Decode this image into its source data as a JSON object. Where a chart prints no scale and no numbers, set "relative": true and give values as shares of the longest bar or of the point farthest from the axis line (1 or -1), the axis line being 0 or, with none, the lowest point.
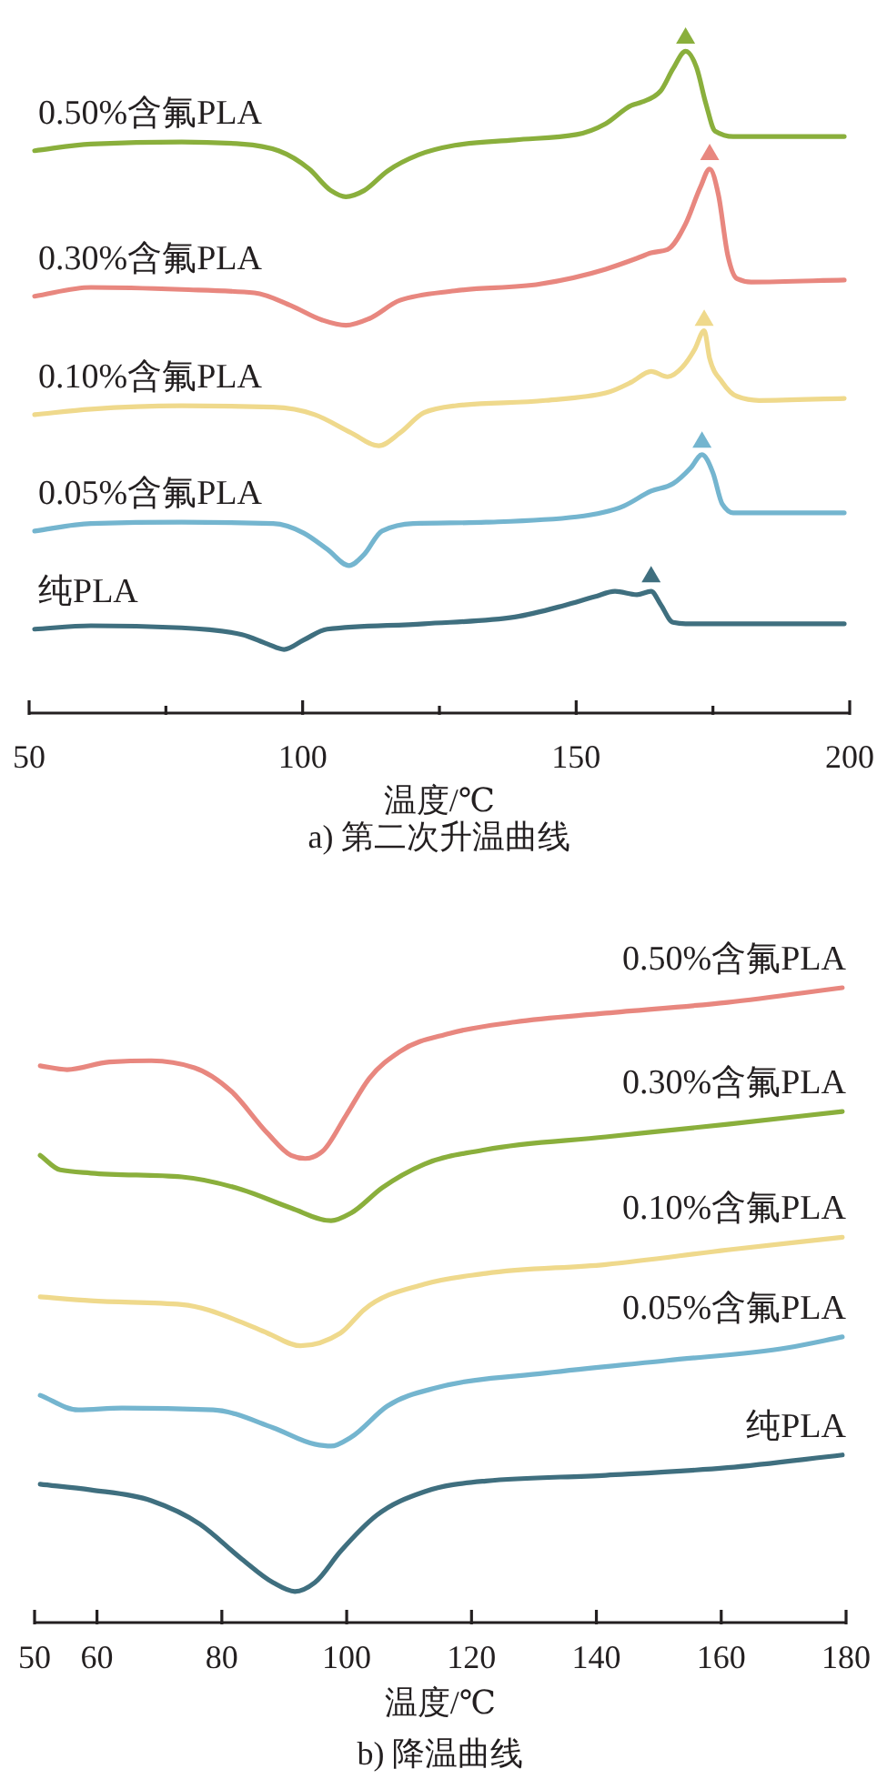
{
  "chart_data": [
    {
      "type": "line",
      "relative": true,
      "title": "a) 第二次升温曲线",
      "xlabel": "温度/℃",
      "xlim": [
        50,
        200
      ],
      "xticks": [
        50,
        {
          "value": 75,
          "label": null
        },
        100,
        {
          "value": 125,
          "label": null
        },
        150,
        {
          "value": 175,
          "label": null
        },
        200
      ],
      "series": [
        {
          "name": "0.50%含氟PLA",
          "color": "#8aaf3c",
          "x": [
            51.0,
            61.3,
            77.9,
            88.9,
            95.6,
            101.2,
            105.2,
            107.9,
            111.2,
            115.5,
            121.2,
            127.8,
            138.8,
            150.1,
            155.4,
            160.1,
            162.0,
            165.4,
            167.7,
            170.0,
            172.0,
            173.7,
            175.4,
            178.7,
            188.7,
            199.0
          ],
          "values": [
            0.831,
            0.841,
            0.844,
            0.841,
            0.831,
            0.804,
            0.772,
            0.763,
            0.772,
            0.801,
            0.825,
            0.839,
            0.847,
            0.855,
            0.871,
            0.898,
            0.903,
            0.919,
            0.952,
            0.978,
            0.954,
            0.901,
            0.86,
            0.852,
            0.852,
            0.852
          ]
        },
        {
          "name": "0.30%含氟PLA",
          "color": "#e8877f",
          "x": [
            51.0,
            61.3,
            77.9,
            91.2,
            97.9,
            103.5,
            107.9,
            112.2,
            117.8,
            127.8,
            143.4,
            155.4,
            161.1,
            163.7,
            166.7,
            170.0,
            172.7,
            174.4,
            176.0,
            177.7,
            179.4,
            182.0,
            199.0
          ],
          "values": [
            0.616,
            0.629,
            0.626,
            0.621,
            0.602,
            0.581,
            0.573,
            0.583,
            0.61,
            0.624,
            0.634,
            0.656,
            0.672,
            0.68,
            0.685,
            0.723,
            0.777,
            0.804,
            0.766,
            0.677,
            0.642,
            0.637,
            0.64
          ]
        },
        {
          "name": "0.10%含氟PLA",
          "color": "#efd98c",
          "x": [
            51.0,
            61.3,
            77.9,
            94.6,
            102.2,
            108.9,
            113.9,
            117.8,
            122.2,
            127.8,
            144.4,
            155.4,
            160.1,
            163.7,
            166.7,
            169.4,
            171.7,
            173.4,
            174.4,
            176.7,
            179.4,
            183.4,
            199.0
          ],
          "values": [
            0.441,
            0.449,
            0.454,
            0.452,
            0.441,
            0.414,
            0.395,
            0.414,
            0.444,
            0.454,
            0.462,
            0.473,
            0.489,
            0.505,
            0.497,
            0.511,
            0.538,
            0.565,
            0.524,
            0.489,
            0.468,
            0.462,
            0.465
          ]
        },
        {
          "name": "0.05%含氟PLA",
          "color": "#74b5cf",
          "x": [
            51.0,
            61.3,
            77.9,
            94.6,
            100.2,
            104.5,
            108.5,
            111.2,
            114.5,
            120.2,
            133.5,
            150.1,
            158.7,
            163.7,
            167.7,
            171.0,
            173.0,
            175.0,
            176.7,
            178.7,
            184.4,
            199.0
          ],
          "values": [
            0.269,
            0.28,
            0.282,
            0.28,
            0.266,
            0.242,
            0.218,
            0.234,
            0.269,
            0.28,
            0.282,
            0.29,
            0.306,
            0.328,
            0.339,
            0.363,
            0.382,
            0.355,
            0.309,
            0.296,
            0.296,
            0.296
          ]
        },
        {
          "name": "纯PLA",
          "color": "#3f6f7f",
          "x": [
            51.0,
            61.3,
            77.9,
            88.9,
            93.6,
            96.6,
            100.2,
            104.5,
            122.2,
            138.8,
            147.8,
            153.4,
            157.1,
            161.1,
            163.7,
            165.4,
            167.7,
            170.0,
            199.0
          ],
          "values": [
            0.124,
            0.129,
            0.126,
            0.116,
            0.102,
            0.094,
            0.108,
            0.124,
            0.132,
            0.142,
            0.159,
            0.172,
            0.18,
            0.175,
            0.18,
            0.161,
            0.134,
            0.132,
            0.132
          ]
        },
        {
          "type": "scatter",
          "marker": "triangle",
          "x": [
            170.0,
            174.4,
            173.4,
            173.0,
            163.7
          ],
          "values": [
            1.0,
            0.828,
            0.583,
            0.403,
            0.204
          ],
          "colors": [
            "#8aaf3c",
            "#e8877f",
            "#efd98c",
            "#74b5cf",
            "#3f6f7f"
          ]
        }
      ]
    },
    {
      "type": "line",
      "relative": true,
      "title": "b) 降温曲线",
      "xlabel": "温度/℃",
      "xlim": [
        50,
        180
      ],
      "xticks": [
        50,
        60,
        80,
        100,
        120,
        140,
        160,
        180
      ],
      "series": [
        {
          "name": "0.50%含氟PLA",
          "color": "#e8877f",
          "x": [
            50.9,
            55.2,
            62.0,
            68.7,
            75.6,
            81.5,
            87.3,
            91.1,
            93.4,
            96.1,
            99.9,
            103.6,
            108.6,
            116.5,
            126.9,
            141.5,
            161.0,
            179.4
          ],
          "values": [
            0.877,
            0.871,
            0.883,
            0.885,
            0.874,
            0.837,
            0.771,
            0.736,
            0.731,
            0.742,
            0.799,
            0.857,
            0.9,
            0.928,
            0.946,
            0.96,
            0.977,
            1.0
          ]
        },
        {
          "name": "0.30%含氟PLA",
          "color": "#8aaf3c",
          "x": [
            50.9,
            54.1,
            59.0,
            73.6,
            83.2,
            91.1,
            97.5,
            100.7,
            105.7,
            112.4,
            122.3,
            141.5,
            161.0,
            179.4
          ],
          "values": [
            0.736,
            0.713,
            0.708,
            0.702,
            0.682,
            0.653,
            0.633,
            0.645,
            0.685,
            0.722,
            0.745,
            0.765,
            0.785,
            0.805
          ]
        },
        {
          "name": "0.10%含氟PLA",
          "color": "#efd98c",
          "x": [
            50.9,
            59.0,
            73.6,
            83.2,
            87.3,
            92.6,
            99.0,
            102.8,
            112.4,
            122.3,
            141.5,
            161.0,
            179.4
          ],
          "values": [
            0.513,
            0.507,
            0.501,
            0.473,
            0.456,
            0.436,
            0.456,
            0.493,
            0.533,
            0.55,
            0.564,
            0.587,
            0.607
          ]
        },
        {
          "name": "0.05%含氟PLA",
          "color": "#74b5cf",
          "x": [
            50.9,
            57.0,
            64.0,
            78.6,
            88.2,
            94.9,
            97.5,
            100.7,
            106.5,
            114.4,
            131.9,
            151.4,
            170.7,
            179.4
          ],
          "values": [
            0.358,
            0.335,
            0.338,
            0.335,
            0.307,
            0.281,
            0.278,
            0.292,
            0.341,
            0.37,
            0.393,
            0.413,
            0.433,
            0.45
          ]
        },
        {
          "name": "纯PLA",
          "color": "#3f6f7f",
          "x": [
            50.9,
            59.0,
            68.7,
            76.5,
            83.2,
            88.2,
            91.7,
            94.9,
            99.0,
            104.8,
            112.4,
            122.3,
            141.5,
            161.0,
            179.4
          ],
          "values": [
            0.218,
            0.209,
            0.192,
            0.155,
            0.1,
            0.063,
            0.049,
            0.063,
            0.112,
            0.169,
            0.206,
            0.223,
            0.232,
            0.244,
            0.264
          ]
        }
      ]
    }
  ]
}
